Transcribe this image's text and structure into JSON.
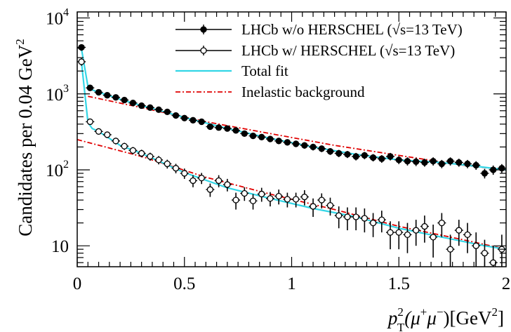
{
  "chart_data": {
    "type": "scatter",
    "ylabel": "Candidates per 0.04 GeV",
    "ylabel_sup": "2",
    "xlabel_parts": {
      "p": "p",
      "p_sup": "2",
      "p_sub": "T",
      "rest": "(μ",
      "plus": "+",
      "mid": "μ",
      "minus": "−",
      "close": ")[GeV",
      "unit_sup": "2",
      "end": "]"
    },
    "x_ticks": [
      "0",
      "0.5",
      "1",
      "1.5",
      "2"
    ],
    "y_ticks": [
      {
        "base": "10",
        "exp": "4",
        "value": 10000
      },
      {
        "base": "10",
        "exp": "3",
        "value": 1000
      },
      {
        "base": "10",
        "exp": "2",
        "value": 100
      },
      {
        "base": "10",
        "exp": "",
        "value": 10
      }
    ],
    "xlim": [
      0,
      2
    ],
    "ylim": [
      5.3,
      12000
    ],
    "yscale": "log",
    "legend_position": "top-right",
    "legend": [
      {
        "label": "LHCb w/o HERSCHEL (√s=13 TeV)",
        "style": "filled-marker"
      },
      {
        "label": "LHCb w/ HERSCHEL (√s=13 TeV)",
        "style": "open-marker"
      },
      {
        "label": "Total fit",
        "style": "cyan-line"
      },
      {
        "label": "Inelastic background",
        "style": "red-dashdot"
      }
    ],
    "colors": {
      "fit": "#33d6e6",
      "background": "#e00000",
      "data": "#000000"
    },
    "series": [
      {
        "name": "LHCb w/o HERSCHEL (√s=13 TeV)",
        "marker": "filled",
        "points": [
          [
            0.02,
            4100,
            400
          ],
          [
            0.06,
            1200,
            80
          ],
          [
            0.1,
            1050,
            70
          ],
          [
            0.14,
            960,
            60
          ],
          [
            0.18,
            900,
            55
          ],
          [
            0.22,
            830,
            50
          ],
          [
            0.26,
            760,
            45
          ],
          [
            0.3,
            700,
            45
          ],
          [
            0.34,
            660,
            40
          ],
          [
            0.38,
            620,
            40
          ],
          [
            0.42,
            580,
            38
          ],
          [
            0.46,
            520,
            35
          ],
          [
            0.5,
            480,
            33
          ],
          [
            0.54,
            450,
            32
          ],
          [
            0.58,
            430,
            30
          ],
          [
            0.62,
            370,
            28
          ],
          [
            0.66,
            360,
            28
          ],
          [
            0.7,
            350,
            27
          ],
          [
            0.74,
            330,
            26
          ],
          [
            0.78,
            300,
            25
          ],
          [
            0.82,
            280,
            24
          ],
          [
            0.86,
            270,
            23
          ],
          [
            0.9,
            255,
            22
          ],
          [
            0.94,
            240,
            22
          ],
          [
            0.98,
            230,
            21
          ],
          [
            1.02,
            220,
            20
          ],
          [
            1.06,
            210,
            20
          ],
          [
            1.1,
            200,
            20
          ],
          [
            1.14,
            190,
            19
          ],
          [
            1.18,
            175,
            18
          ],
          [
            1.22,
            165,
            18
          ],
          [
            1.26,
            160,
            17
          ],
          [
            1.3,
            150,
            17
          ],
          [
            1.34,
            155,
            17
          ],
          [
            1.38,
            145,
            16
          ],
          [
            1.42,
            140,
            16
          ],
          [
            1.46,
            150,
            17
          ],
          [
            1.5,
            135,
            16
          ],
          [
            1.54,
            130,
            16
          ],
          [
            1.58,
            128,
            16
          ],
          [
            1.62,
            125,
            15
          ],
          [
            1.66,
            130,
            16
          ],
          [
            1.7,
            120,
            15
          ],
          [
            1.74,
            130,
            16
          ],
          [
            1.78,
            125,
            15
          ],
          [
            1.82,
            120,
            15
          ],
          [
            1.86,
            115,
            15
          ],
          [
            1.9,
            90,
            13
          ],
          [
            1.94,
            100,
            14
          ],
          [
            1.98,
            105,
            14
          ]
        ]
      },
      {
        "name": "LHCb w/ HERSCHEL (√s=13 TeV)",
        "marker": "open",
        "points": [
          [
            0.02,
            2650,
            300
          ],
          [
            0.06,
            430,
            35
          ],
          [
            0.1,
            320,
            28
          ],
          [
            0.14,
            290,
            26
          ],
          [
            0.18,
            240,
            24
          ],
          [
            0.22,
            205,
            22
          ],
          [
            0.26,
            180,
            20
          ],
          [
            0.3,
            165,
            19
          ],
          [
            0.34,
            150,
            18
          ],
          [
            0.38,
            135,
            17
          ],
          [
            0.42,
            120,
            16
          ],
          [
            0.46,
            105,
            15
          ],
          [
            0.5,
            90,
            14
          ],
          [
            0.54,
            72,
            13
          ],
          [
            0.58,
            78,
            13
          ],
          [
            0.62,
            55,
            11
          ],
          [
            0.66,
            72,
            13
          ],
          [
            0.7,
            64,
            12
          ],
          [
            0.74,
            40,
            10
          ],
          [
            0.78,
            49,
            10
          ],
          [
            0.82,
            39,
            9
          ],
          [
            0.86,
            48,
            10
          ],
          [
            0.9,
            42,
            9
          ],
          [
            0.94,
            45,
            10
          ],
          [
            0.98,
            41,
            9
          ],
          [
            1.02,
            41,
            9
          ],
          [
            1.06,
            44,
            10
          ],
          [
            1.1,
            33,
            9
          ],
          [
            1.14,
            40,
            9
          ],
          [
            1.18,
            34,
            9
          ],
          [
            1.22,
            25,
            8
          ],
          [
            1.26,
            24,
            8
          ],
          [
            1.3,
            24,
            8
          ],
          [
            1.34,
            23,
            8
          ],
          [
            1.38,
            20,
            7
          ],
          [
            1.42,
            22,
            7
          ],
          [
            1.46,
            15,
            6
          ],
          [
            1.5,
            15,
            6
          ],
          [
            1.54,
            14,
            6
          ],
          [
            1.58,
            16,
            6
          ],
          [
            1.62,
            18,
            7
          ],
          [
            1.66,
            13,
            6
          ],
          [
            1.7,
            20,
            7
          ],
          [
            1.74,
            9,
            5
          ],
          [
            1.78,
            16,
            6
          ],
          [
            1.82,
            14,
            6
          ],
          [
            1.86,
            10,
            5
          ],
          [
            1.9,
            8,
            4
          ],
          [
            1.94,
            6,
            4
          ],
          [
            1.98,
            9,
            5
          ]
        ]
      }
    ],
    "fit_curves": [
      {
        "name": "Total fit (w/o)",
        "x": [
          0.02,
          0.05,
          0.07,
          0.1,
          0.2,
          0.3,
          0.5,
          0.7,
          0.9,
          1.1,
          1.3,
          1.5,
          1.7,
          1.9,
          2.0
        ],
        "y": [
          3900,
          1250,
          1130,
          1050,
          850,
          700,
          490,
          350,
          260,
          200,
          160,
          135,
          125,
          108,
          100
        ]
      },
      {
        "name": "Total fit (w/)",
        "x": [
          0.02,
          0.05,
          0.07,
          0.1,
          0.2,
          0.3,
          0.5,
          0.7,
          0.9,
          1.1,
          1.3,
          1.5,
          1.7,
          1.9,
          2.0
        ],
        "y": [
          2600,
          420,
          350,
          320,
          210,
          165,
          92,
          58,
          42,
          31,
          24,
          17,
          13,
          10,
          9
        ]
      }
    ],
    "background_curves": [
      {
        "name": "Inelastic background (w/o)",
        "x": [
          0.05,
          0.3,
          0.6,
          0.9,
          1.2,
          1.5,
          1.8,
          2.0
        ],
        "y": [
          930,
          660,
          430,
          300,
          210,
          155,
          115,
          100
        ]
      },
      {
        "name": "Inelastic background (w/)",
        "x": [
          0.0,
          0.3,
          0.6,
          0.9,
          1.2,
          1.5,
          1.8,
          2.0
        ],
        "y": [
          250,
          150,
          80,
          48,
          30,
          18,
          12,
          9
        ]
      }
    ]
  }
}
